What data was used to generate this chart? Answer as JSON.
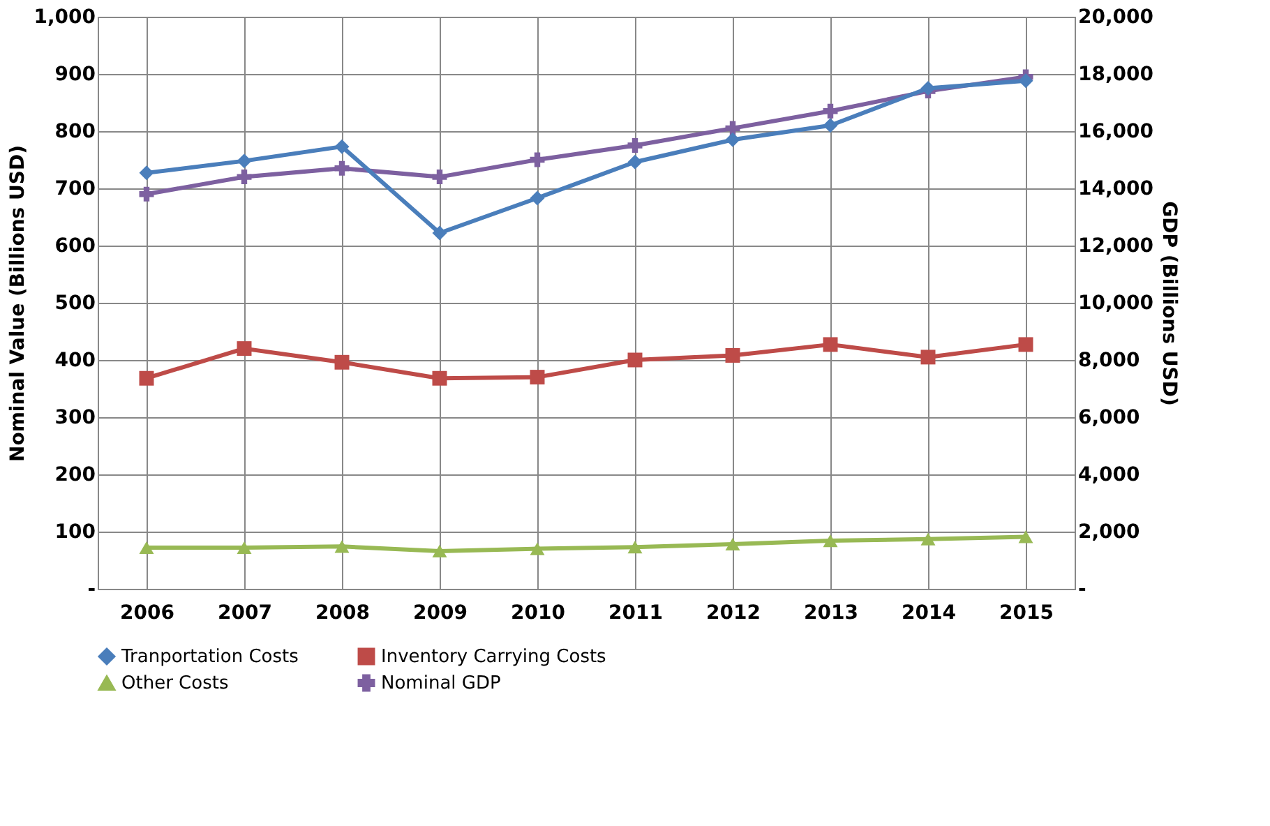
{
  "chart_data": {
    "type": "line",
    "ylabel": "Nominal Value (Billions USD)",
    "y2label": "GDP (Billions USD)",
    "categories": [
      "2006",
      "2007",
      "2008",
      "2009",
      "2010",
      "2011",
      "2012",
      "2013",
      "2014",
      "2015"
    ],
    "ylim": [
      0,
      1000
    ],
    "yticks": [
      {
        "value": 0,
        "label": "-"
      },
      100,
      200,
      300,
      400,
      500,
      600,
      700,
      800,
      900,
      {
        "value": 1000,
        "label": "1,000"
      }
    ],
    "y2lim": [
      0,
      20000
    ],
    "y2ticks": [
      {
        "value": 0,
        "label": "-"
      },
      {
        "value": 2000,
        "label": "2,000"
      },
      {
        "value": 4000,
        "label": "4,000"
      },
      {
        "value": 6000,
        "label": "6,000"
      },
      {
        "value": 8000,
        "label": "8,000"
      },
      {
        "value": 10000,
        "label": "10,000"
      },
      {
        "value": 12000,
        "label": "12,000"
      },
      {
        "value": 14000,
        "label": "14,000"
      },
      {
        "value": 16000,
        "label": "16,000"
      },
      {
        "value": 18000,
        "label": "18,000"
      },
      {
        "value": 20000,
        "label": "20,000"
      }
    ],
    "grid": true,
    "legend": "bottom",
    "series": [
      {
        "name": "Tranportation Costs",
        "color": "#4a7ebb",
        "marker": "diamond",
        "values": [
          727,
          748,
          773,
          622,
          683,
          746,
          785,
          810,
          875,
          888
        ]
      },
      {
        "name": "Inventory Carrying Costs",
        "color": "#be4b48",
        "marker": "square",
        "values": [
          368,
          420,
          396,
          368,
          370,
          400,
          408,
          427,
          405,
          427
        ]
      },
      {
        "name": "Other Costs",
        "color": "#98b954",
        "marker": "triangle",
        "values": [
          72,
          72,
          74,
          66,
          70,
          73,
          78,
          84,
          87,
          91
        ]
      },
      {
        "name": "Nominal GDP",
        "color": "#7d60a0",
        "marker": "cross",
        "axis": "y2",
        "values": [
          13800,
          14400,
          14700,
          14400,
          15000,
          15500,
          16100,
          16700,
          17400,
          17900
        ]
      }
    ]
  }
}
